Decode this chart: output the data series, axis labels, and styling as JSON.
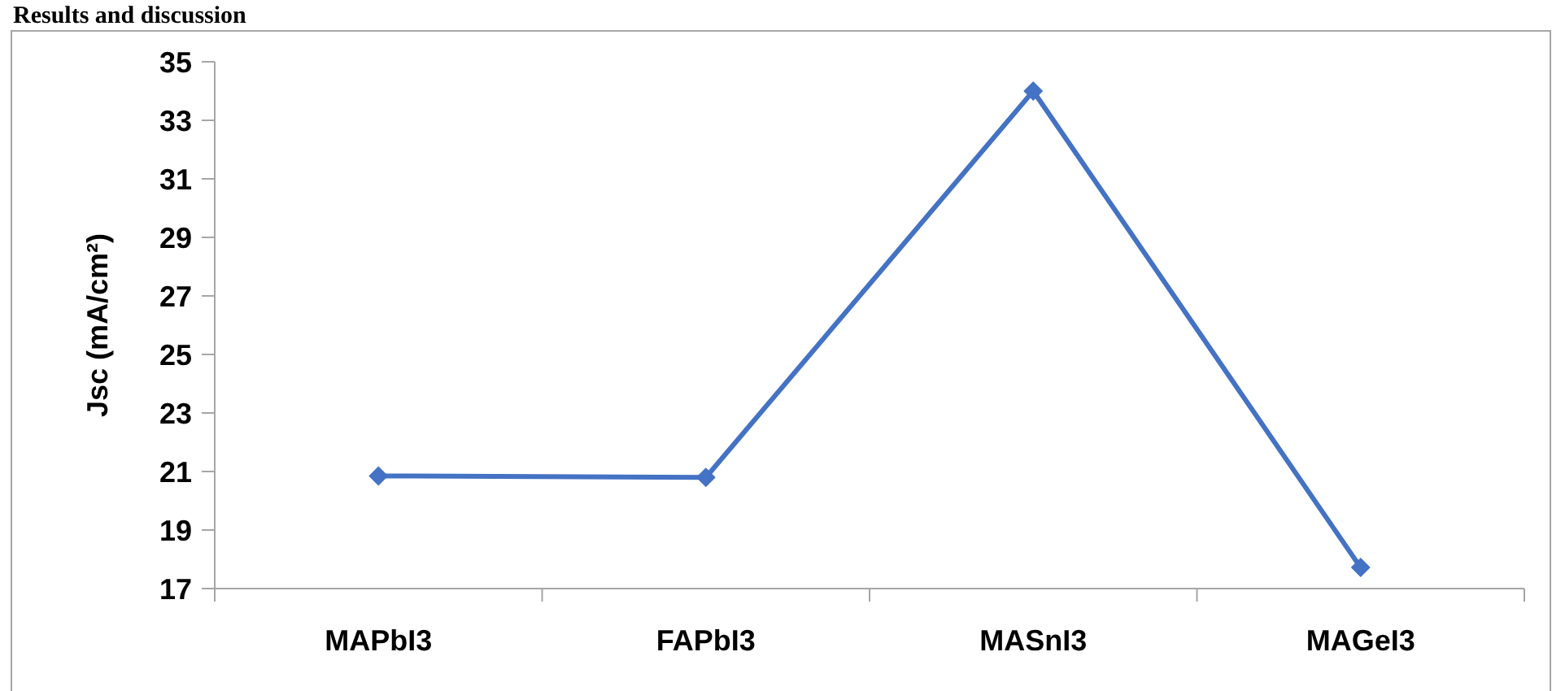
{
  "chart_data": {
    "type": "line",
    "categories": [
      "MAPbI3",
      "FAPbI3",
      "MASnI3",
      "MAGeI3"
    ],
    "series": [
      {
        "color": "#4472c4",
        "values": [
          20.85,
          20.8,
          34.0,
          17.72
        ]
      }
    ],
    "ylabel": "Jsc (mA/cm²)",
    "ylim": [
      17,
      35
    ],
    "yticks": [
      17,
      19,
      21,
      23,
      25,
      27,
      29,
      31,
      33,
      35
    ],
    "marker": "diamond",
    "line_style": "solid",
    "grid": false,
    "annotations": [
      "Results and discussion"
    ]
  }
}
